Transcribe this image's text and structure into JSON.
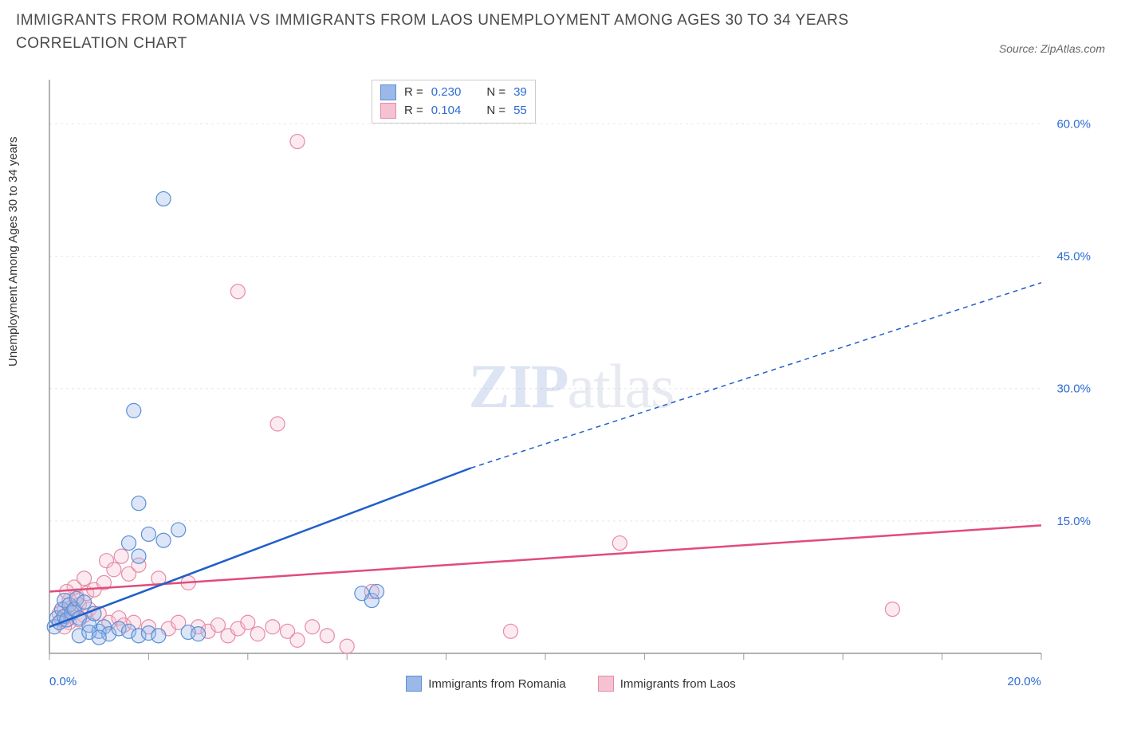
{
  "title": "IMMIGRANTS FROM ROMANIA VS IMMIGRANTS FROM LAOS UNEMPLOYMENT AMONG AGES 30 TO 34 YEARS CORRELATION CHART",
  "source_label": "Source: ZipAtlas.com",
  "y_axis_label": "Unemployment Among Ages 30 to 34 years",
  "watermark_bold": "ZIP",
  "watermark_light": "atlas",
  "chart": {
    "type": "scatter",
    "background_color": "#ffffff",
    "grid_color": "#e6e6e6",
    "axis_color": "#999999",
    "tick_label_color": "#2b6cd4",
    "xlim": [
      0,
      20
    ],
    "ylim": [
      0,
      65
    ],
    "x_ticks": [
      0,
      2,
      4,
      6,
      8,
      10,
      12,
      14,
      16,
      18,
      20
    ],
    "x_tick_labels": {
      "0": "0.0%",
      "20": "20.0%"
    },
    "y_ticks": [
      15,
      30,
      45,
      60
    ],
    "y_tick_labels": {
      "15": "15.0%",
      "30": "30.0%",
      "45": "45.0%",
      "60": "60.0%"
    },
    "marker_radius": 9,
    "marker_stroke_width": 1.2,
    "marker_fill_opacity": 0.35,
    "trend_line_width": 2.5,
    "trend_dash": "6,5"
  },
  "series": {
    "romania": {
      "label": "Immigrants from Romania",
      "color_fill": "#9bb8e8",
      "color_stroke": "#5a8fd6",
      "trend_color": "#1f5fc9",
      "R_label": "R = ",
      "R": "0.230",
      "N_label": "N = ",
      "N": "39",
      "trend": {
        "x1": 0,
        "y1": 3.0,
        "x2_solid": 8.5,
        "y2_solid": 21.0,
        "x2": 20,
        "y2": 42.0
      },
      "points": [
        [
          0.1,
          3
        ],
        [
          0.15,
          4
        ],
        [
          0.2,
          3.5
        ],
        [
          0.25,
          5
        ],
        [
          0.3,
          4.2
        ],
        [
          0.3,
          6
        ],
        [
          0.35,
          3.8
        ],
        [
          0.4,
          5.5
        ],
        [
          0.45,
          4.6
        ],
        [
          0.5,
          5.0
        ],
        [
          0.55,
          6.2
        ],
        [
          0.6,
          4.0
        ],
        [
          0.7,
          5.8
        ],
        [
          0.8,
          3.2
        ],
        [
          0.9,
          4.5
        ],
        [
          1.0,
          2.5
        ],
        [
          1.1,
          3.0
        ],
        [
          1.2,
          2.2
        ],
        [
          1.4,
          2.8
        ],
        [
          1.6,
          12.5
        ],
        [
          1.6,
          2.5
        ],
        [
          1.8,
          11.0
        ],
        [
          1.8,
          2.0
        ],
        [
          2.0,
          13.5
        ],
        [
          2.0,
          2.3
        ],
        [
          2.2,
          2.0
        ],
        [
          2.3,
          12.8
        ],
        [
          2.6,
          14.0
        ],
        [
          2.8,
          2.4
        ],
        [
          3.0,
          2.2
        ],
        [
          1.7,
          27.5
        ],
        [
          1.8,
          17.0
        ],
        [
          2.3,
          51.5
        ],
        [
          6.3,
          6.8
        ],
        [
          6.5,
          6.0
        ],
        [
          6.6,
          7.0
        ],
        [
          0.6,
          2.0
        ],
        [
          0.8,
          2.4
        ],
        [
          1.0,
          1.8
        ]
      ]
    },
    "laos": {
      "label": "Immigrants from Laos",
      "color_fill": "#f4c2d0",
      "color_stroke": "#e88aa8",
      "trend_color": "#e14b7a",
      "R_label": "R = ",
      "R": "0.104",
      "N_label": "N = ",
      "N": "55",
      "trend": {
        "x1": 0,
        "y1": 7.0,
        "x2_solid": 20,
        "y2_solid": 14.5,
        "x2": 20,
        "y2": 14.5
      },
      "points": [
        [
          0.2,
          4.5
        ],
        [
          0.3,
          5.0
        ],
        [
          0.35,
          4.2
        ],
        [
          0.4,
          6.0
        ],
        [
          0.45,
          5.2
        ],
        [
          0.5,
          4.8
        ],
        [
          0.55,
          6.5
        ],
        [
          0.6,
          5.5
        ],
        [
          0.7,
          4.3
        ],
        [
          0.75,
          6.8
        ],
        [
          0.8,
          5.0
        ],
        [
          0.9,
          7.2
        ],
        [
          1.0,
          4.5
        ],
        [
          1.1,
          8.0
        ],
        [
          1.15,
          10.5
        ],
        [
          1.2,
          3.5
        ],
        [
          1.3,
          9.5
        ],
        [
          1.4,
          4.0
        ],
        [
          1.45,
          11.0
        ],
        [
          1.5,
          3.2
        ],
        [
          1.6,
          9.0
        ],
        [
          1.7,
          3.5
        ],
        [
          1.8,
          10.0
        ],
        [
          2.0,
          3.0
        ],
        [
          2.2,
          8.5
        ],
        [
          2.4,
          2.8
        ],
        [
          2.6,
          3.5
        ],
        [
          2.8,
          8.0
        ],
        [
          3.0,
          3.0
        ],
        [
          3.2,
          2.5
        ],
        [
          3.4,
          3.2
        ],
        [
          3.6,
          2.0
        ],
        [
          3.8,
          2.8
        ],
        [
          4.0,
          3.5
        ],
        [
          4.2,
          2.2
        ],
        [
          4.5,
          3.0
        ],
        [
          4.8,
          2.5
        ],
        [
          5.0,
          1.5
        ],
        [
          5.3,
          3.0
        ],
        [
          5.6,
          2.0
        ],
        [
          6.0,
          0.8
        ],
        [
          6.5,
          7.0
        ],
        [
          3.8,
          41.0
        ],
        [
          5.0,
          58.0
        ],
        [
          4.6,
          26.0
        ],
        [
          9.3,
          2.5
        ],
        [
          11.5,
          12.5
        ],
        [
          17.0,
          5.0
        ],
        [
          0.4,
          3.5
        ],
        [
          0.5,
          7.5
        ],
        [
          0.6,
          3.8
        ],
        [
          0.7,
          8.5
        ],
        [
          0.3,
          3.0
        ],
        [
          0.35,
          7.0
        ],
        [
          0.25,
          3.8
        ]
      ]
    }
  }
}
